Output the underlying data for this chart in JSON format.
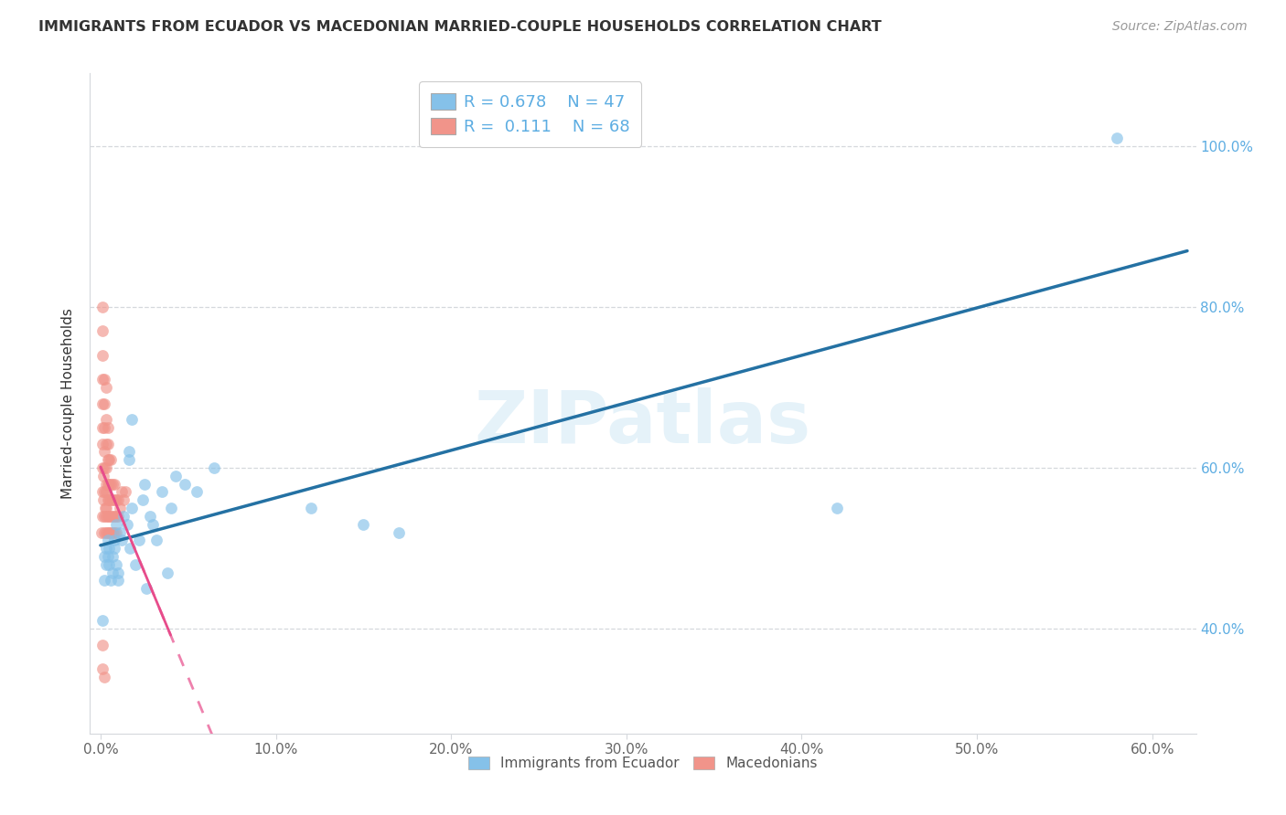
{
  "title": "IMMIGRANTS FROM ECUADOR VS MACEDONIAN MARRIED-COUPLE HOUSEHOLDS CORRELATION CHART",
  "source": "Source: ZipAtlas.com",
  "ylabel_label": "Married-couple Households",
  "xlabel_label_blue": "Immigrants from Ecuador",
  "xlabel_label_pink": "Macedonians",
  "xlim": [
    -0.006,
    0.625
  ],
  "ylim": [
    0.27,
    1.09
  ],
  "yticks": [
    0.4,
    0.6,
    0.8,
    1.0
  ],
  "xticks": [
    0.0,
    0.1,
    0.2,
    0.3,
    0.4,
    0.5,
    0.6
  ],
  "legend_blue_R": "0.678",
  "legend_blue_N": "47",
  "legend_pink_R": "0.111",
  "legend_pink_N": "68",
  "watermark": "ZIPatlas",
  "blue_scatter_color": "#85c1e9",
  "pink_scatter_color": "#f1948a",
  "blue_line_color": "#2471a3",
  "pink_line_color": "#e74c8b",
  "grid_color": "#d5d8dc",
  "text_color": "#333333",
  "right_axis_color": "#5dade2",
  "blue_x": [
    0.001,
    0.002,
    0.002,
    0.003,
    0.003,
    0.004,
    0.004,
    0.005,
    0.005,
    0.006,
    0.007,
    0.007,
    0.008,
    0.008,
    0.009,
    0.009,
    0.01,
    0.01,
    0.011,
    0.012,
    0.013,
    0.015,
    0.016,
    0.016,
    0.017,
    0.018,
    0.018,
    0.02,
    0.022,
    0.024,
    0.025,
    0.026,
    0.028,
    0.03,
    0.032,
    0.035,
    0.038,
    0.04,
    0.043,
    0.048,
    0.055,
    0.065,
    0.12,
    0.15,
    0.17,
    0.42,
    0.58
  ],
  "blue_y": [
    0.41,
    0.46,
    0.49,
    0.48,
    0.5,
    0.51,
    0.49,
    0.5,
    0.48,
    0.46,
    0.49,
    0.47,
    0.51,
    0.5,
    0.48,
    0.53,
    0.47,
    0.46,
    0.52,
    0.51,
    0.54,
    0.53,
    0.62,
    0.61,
    0.5,
    0.55,
    0.66,
    0.48,
    0.51,
    0.56,
    0.58,
    0.45,
    0.54,
    0.53,
    0.51,
    0.57,
    0.47,
    0.55,
    0.59,
    0.58,
    0.57,
    0.6,
    0.55,
    0.53,
    0.52,
    0.55,
    1.01
  ],
  "pink_x": [
    0.0005,
    0.001,
    0.001,
    0.001,
    0.001,
    0.001,
    0.001,
    0.001,
    0.001,
    0.001,
    0.0015,
    0.0015,
    0.002,
    0.002,
    0.002,
    0.002,
    0.002,
    0.002,
    0.002,
    0.002,
    0.0025,
    0.003,
    0.003,
    0.003,
    0.003,
    0.003,
    0.003,
    0.003,
    0.003,
    0.003,
    0.004,
    0.004,
    0.004,
    0.004,
    0.004,
    0.004,
    0.004,
    0.005,
    0.005,
    0.005,
    0.005,
    0.005,
    0.006,
    0.006,
    0.006,
    0.006,
    0.006,
    0.007,
    0.007,
    0.007,
    0.007,
    0.008,
    0.008,
    0.008,
    0.008,
    0.009,
    0.009,
    0.009,
    0.01,
    0.01,
    0.011,
    0.012,
    0.013,
    0.014,
    0.001,
    0.001,
    0.001,
    0.002
  ],
  "pink_y": [
    0.52,
    0.54,
    0.57,
    0.6,
    0.63,
    0.65,
    0.68,
    0.71,
    0.74,
    0.77,
    0.56,
    0.59,
    0.52,
    0.54,
    0.57,
    0.6,
    0.62,
    0.65,
    0.68,
    0.71,
    0.55,
    0.52,
    0.54,
    0.57,
    0.6,
    0.63,
    0.66,
    0.7,
    0.55,
    0.58,
    0.52,
    0.54,
    0.56,
    0.58,
    0.61,
    0.63,
    0.65,
    0.52,
    0.54,
    0.56,
    0.58,
    0.61,
    0.52,
    0.54,
    0.56,
    0.58,
    0.61,
    0.52,
    0.54,
    0.56,
    0.58,
    0.52,
    0.54,
    0.56,
    0.58,
    0.52,
    0.54,
    0.56,
    0.54,
    0.56,
    0.55,
    0.57,
    0.56,
    0.57,
    0.35,
    0.38,
    0.8,
    0.34
  ]
}
